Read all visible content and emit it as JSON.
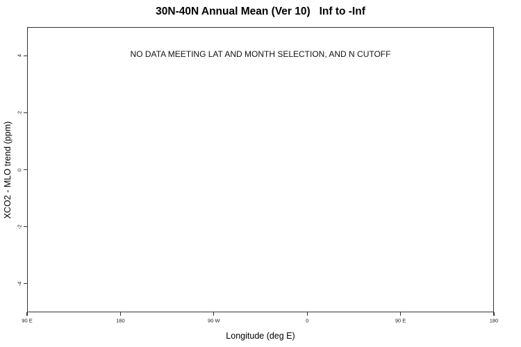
{
  "chart_data": {
    "type": "scatter",
    "title": "30N-40N Annual Mean (Ver 10)   Inf to -Inf",
    "annotation": "NO DATA MEETING LAT AND MONTH SELECTION, AND N CUTOFF",
    "xlabel": "Longitude (deg E)",
    "ylabel": "XCO2 - MLO trend (ppm)",
    "x_ticks": [
      {
        "value": 90,
        "label": "90 E"
      },
      {
        "value": 180,
        "label": "180"
      },
      {
        "value": 270,
        "label": "90 W"
      },
      {
        "value": 360,
        "label": "0"
      },
      {
        "value": 450,
        "label": "90 E"
      },
      {
        "value": 540,
        "label": "180"
      }
    ],
    "y_ticks": [
      {
        "value": -4,
        "label": "-4"
      },
      {
        "value": -2,
        "label": "-2"
      },
      {
        "value": 0,
        "label": "0"
      },
      {
        "value": 2,
        "label": "2"
      },
      {
        "value": 4,
        "label": "4"
      }
    ],
    "xlim": [
      90,
      540
    ],
    "ylim": [
      -5,
      5
    ],
    "grid": false,
    "legend": null,
    "series": []
  },
  "colors": {
    "background": "#ffffff",
    "axis": "#333333",
    "text": "#000000"
  }
}
